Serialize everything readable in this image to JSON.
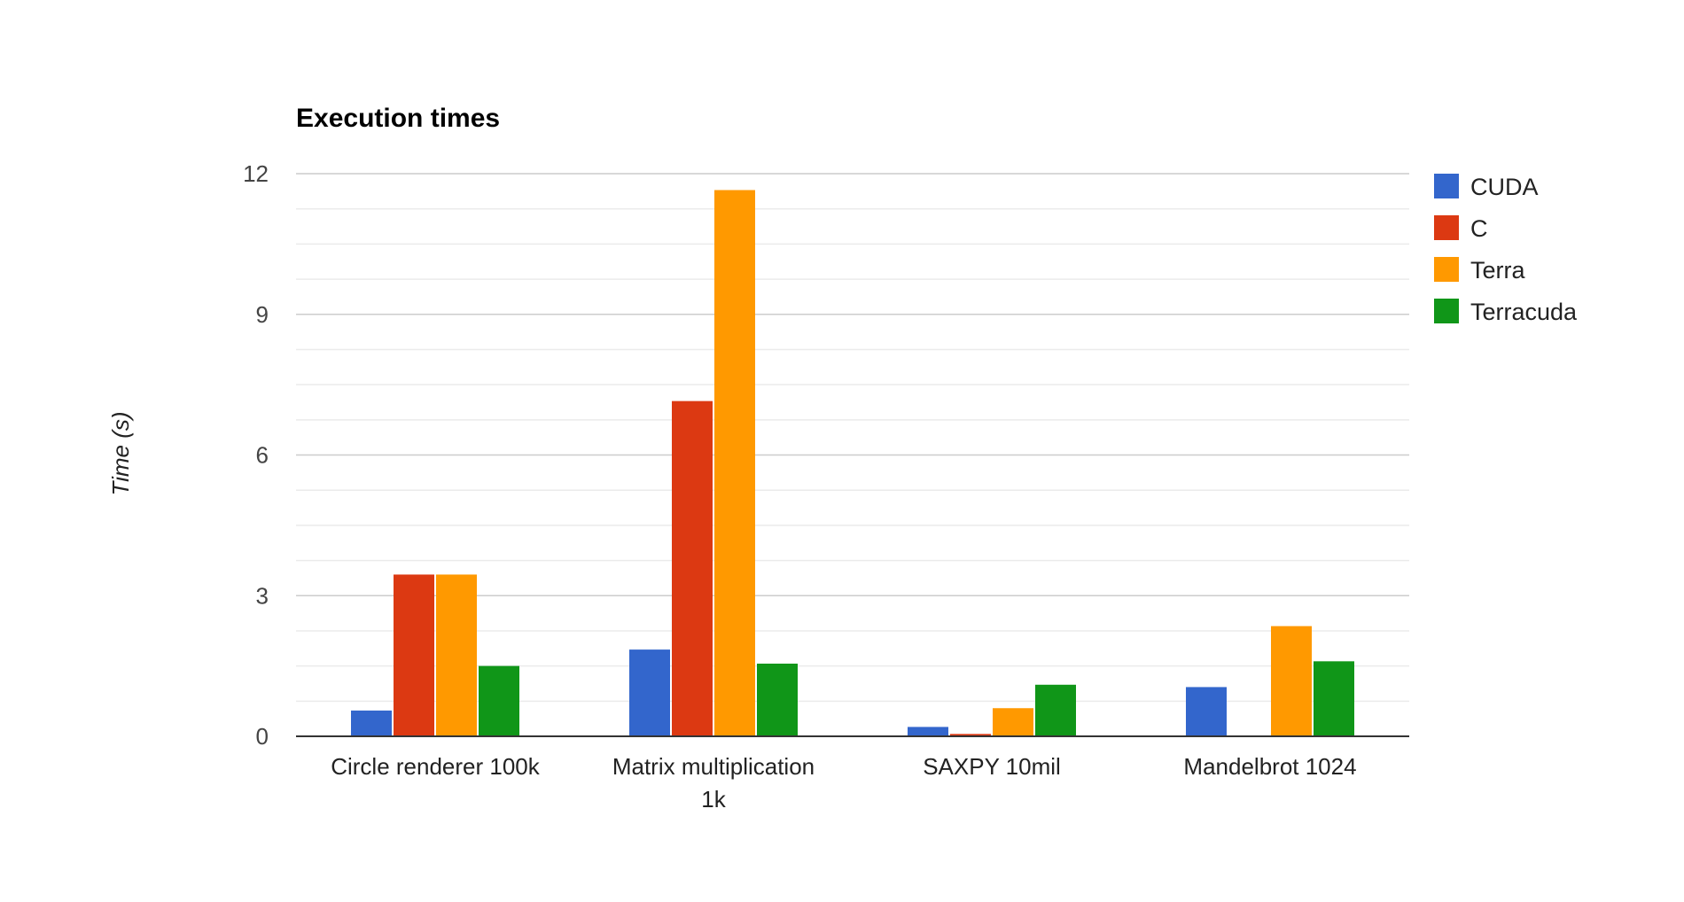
{
  "chart_data": {
    "type": "bar",
    "title": "Execution times",
    "xlabel": "",
    "ylabel": "Time (s)",
    "ylim": [
      0,
      12
    ],
    "yticks": [
      0,
      3,
      6,
      9,
      12
    ],
    "minor_gridlines_per_major": 3,
    "grid": true,
    "legend_position": "right",
    "categories": [
      [
        "Circle renderer 100k"
      ],
      [
        "Matrix multiplication",
        "1k"
      ],
      [
        "SAXPY 10mil"
      ],
      [
        "Mandelbrot 1024"
      ]
    ],
    "series": [
      {
        "name": "CUDA",
        "color": "#3366cc",
        "values": [
          0.55,
          1.85,
          0.2,
          1.05
        ]
      },
      {
        "name": "C",
        "color": "#dc3912",
        "values": [
          3.45,
          7.15,
          0.05,
          0
        ]
      },
      {
        "name": "Terra",
        "color": "#ff9900",
        "values": [
          3.45,
          11.65,
          0.6,
          2.35
        ]
      },
      {
        "name": "Terracuda",
        "color": "#109618",
        "values": [
          1.5,
          1.55,
          1.1,
          1.6
        ]
      }
    ]
  }
}
